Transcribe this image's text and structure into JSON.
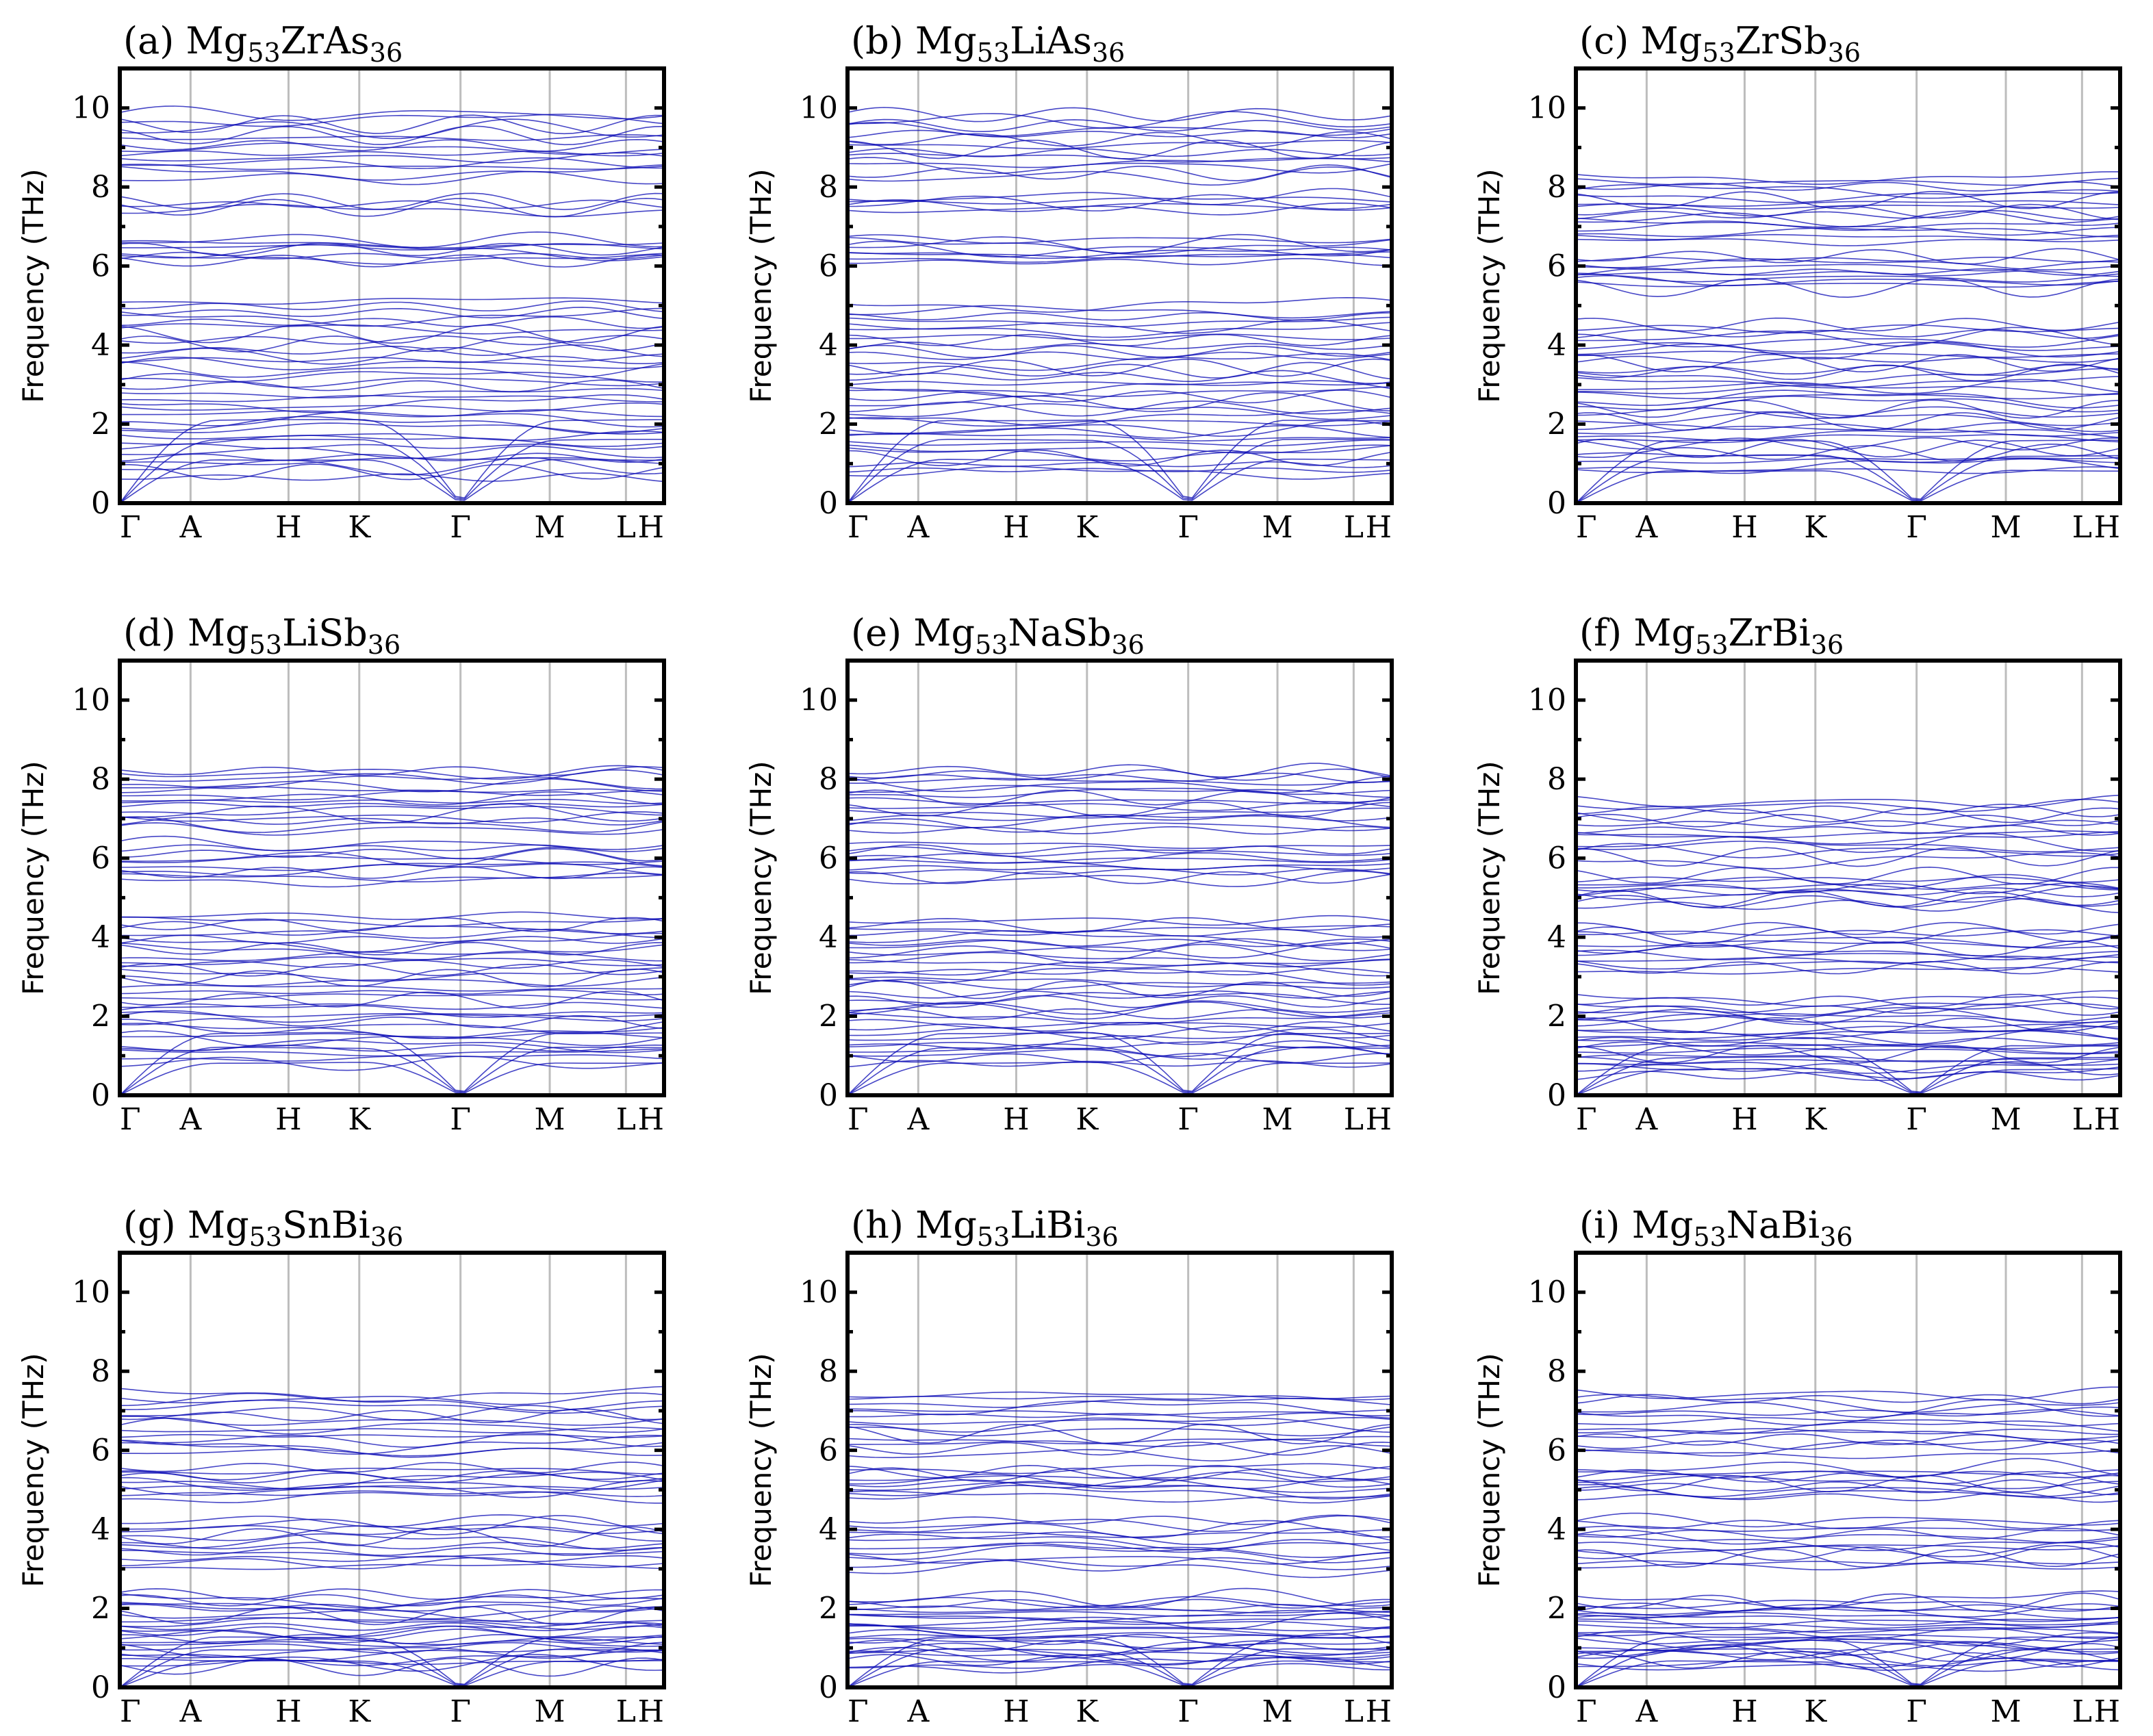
{
  "chart_data": [
    {
      "type": "line",
      "id": "a",
      "label": "(a)",
      "formula": [
        [
          "Mg",
          ""
        ],
        [
          "53",
          "sub"
        ],
        [
          "ZrAs",
          ""
        ],
        [
          "36",
          "sub"
        ]
      ],
      "ylabel": "Frequency (THz)",
      "ylim": [
        0,
        11
      ],
      "yticks": [
        0,
        2,
        4,
        6,
        8,
        10
      ],
      "kpath": [
        "Γ",
        "A",
        "H",
        "K",
        "Γ",
        "M",
        "L",
        "H"
      ],
      "band_groups": [
        {
          "lo": 0.6,
          "hi": 5.2,
          "n": 34
        },
        {
          "lo": 6.1,
          "hi": 6.7,
          "n": 8
        },
        {
          "lo": 7.4,
          "hi": 7.7,
          "n": 4
        },
        {
          "lo": 8.2,
          "hi": 9.9,
          "n": 14
        }
      ],
      "acoustic_max": 2.0,
      "line_color": "#0a0ab4"
    },
    {
      "type": "line",
      "id": "b",
      "label": "(b)",
      "formula": [
        [
          "Mg",
          ""
        ],
        [
          "53",
          "sub"
        ],
        [
          "LiAs",
          ""
        ],
        [
          "36",
          "sub"
        ]
      ],
      "ylabel": "Frequency (THz)",
      "ylim": [
        0,
        11
      ],
      "yticks": [
        0,
        2,
        4,
        6,
        8,
        10
      ],
      "kpath": [
        "Γ",
        "A",
        "H",
        "K",
        "Γ",
        "M",
        "L",
        "H"
      ],
      "band_groups": [
        {
          "lo": 0.7,
          "hi": 5.1,
          "n": 34
        },
        {
          "lo": 6.1,
          "hi": 6.7,
          "n": 8
        },
        {
          "lo": 7.4,
          "hi": 7.8,
          "n": 5
        },
        {
          "lo": 8.2,
          "hi": 9.9,
          "n": 14
        }
      ],
      "acoustic_max": 2.0,
      "line_color": "#0a0ab4"
    },
    {
      "type": "line",
      "id": "c",
      "label": "(c)",
      "formula": [
        [
          "Mg",
          ""
        ],
        [
          "53",
          "sub"
        ],
        [
          "ZrSb",
          ""
        ],
        [
          "36",
          "sub"
        ]
      ],
      "ylabel": "Frequency (THz)",
      "ylim": [
        0,
        11
      ],
      "yticks": [
        0,
        2,
        4,
        6,
        8,
        10
      ],
      "kpath": [
        "Γ",
        "A",
        "H",
        "K",
        "Γ",
        "M",
        "L",
        "H"
      ],
      "band_groups": [
        {
          "lo": 0.8,
          "hi": 4.6,
          "n": 34
        },
        {
          "lo": 5.4,
          "hi": 6.3,
          "n": 10
        },
        {
          "lo": 6.6,
          "hi": 8.3,
          "n": 16
        }
      ],
      "acoustic_max": 1.5,
      "line_color": "#0a0ab4"
    },
    {
      "type": "line",
      "id": "d",
      "label": "(d)",
      "formula": [
        [
          "Mg",
          ""
        ],
        [
          "53",
          "sub"
        ],
        [
          "LiSb",
          ""
        ],
        [
          "36",
          "sub"
        ]
      ],
      "ylabel": "Frequency (THz)",
      "ylim": [
        0,
        11
      ],
      "yticks": [
        0,
        2,
        4,
        6,
        8,
        10
      ],
      "kpath": [
        "Γ",
        "A",
        "H",
        "K",
        "Γ",
        "M",
        "L",
        "H"
      ],
      "band_groups": [
        {
          "lo": 0.8,
          "hi": 4.6,
          "n": 34
        },
        {
          "lo": 5.4,
          "hi": 6.4,
          "n": 10
        },
        {
          "lo": 6.7,
          "hi": 8.3,
          "n": 16
        }
      ],
      "acoustic_max": 1.5,
      "line_color": "#0a0ab4"
    },
    {
      "type": "line",
      "id": "e",
      "label": "(e)",
      "formula": [
        [
          "Mg",
          ""
        ],
        [
          "53",
          "sub"
        ],
        [
          "NaSb",
          ""
        ],
        [
          "36",
          "sub"
        ]
      ],
      "ylabel": "Frequency (THz)",
      "ylim": [
        0,
        11
      ],
      "yticks": [
        0,
        2,
        4,
        6,
        8,
        10
      ],
      "kpath": [
        "Γ",
        "A",
        "H",
        "K",
        "Γ",
        "M",
        "L",
        "H"
      ],
      "band_groups": [
        {
          "lo": 0.8,
          "hi": 4.5,
          "n": 34
        },
        {
          "lo": 5.4,
          "hi": 6.4,
          "n": 10
        },
        {
          "lo": 6.7,
          "hi": 8.3,
          "n": 16
        }
      ],
      "acoustic_max": 1.5,
      "line_color": "#0a0ab4"
    },
    {
      "type": "line",
      "id": "f",
      "label": "(f)",
      "formula": [
        [
          "Mg",
          ""
        ],
        [
          "53",
          "sub"
        ],
        [
          "ZrBi",
          ""
        ],
        [
          "36",
          "sub"
        ]
      ],
      "ylabel": "Frequency (THz)",
      "ylim": [
        0,
        11
      ],
      "yticks": [
        0,
        2,
        4,
        6,
        8,
        10
      ],
      "kpath": [
        "Γ",
        "A",
        "H",
        "K",
        "Γ",
        "M",
        "L",
        "H"
      ],
      "band_groups": [
        {
          "lo": 0.5,
          "hi": 2.5,
          "n": 24
        },
        {
          "lo": 3.1,
          "hi": 4.3,
          "n": 12
        },
        {
          "lo": 4.8,
          "hi": 5.6,
          "n": 10
        },
        {
          "lo": 5.9,
          "hi": 7.5,
          "n": 14
        }
      ],
      "acoustic_max": 1.2,
      "line_color": "#0a0ab4"
    },
    {
      "type": "line",
      "id": "g",
      "label": "(g)",
      "formula": [
        [
          "Mg",
          ""
        ],
        [
          "53",
          "sub"
        ],
        [
          "SnBi",
          ""
        ],
        [
          "36",
          "sub"
        ]
      ],
      "ylabel": "Frequency (THz)",
      "ylim": [
        0,
        11
      ],
      "yticks": [
        0,
        2,
        4,
        6,
        8,
        10
      ],
      "kpath": [
        "Γ",
        "A",
        "H",
        "K",
        "Γ",
        "M",
        "L",
        "H"
      ],
      "band_groups": [
        {
          "lo": 0.5,
          "hi": 2.4,
          "n": 24
        },
        {
          "lo": 3.0,
          "hi": 4.3,
          "n": 12
        },
        {
          "lo": 4.8,
          "hi": 5.6,
          "n": 10
        },
        {
          "lo": 5.9,
          "hi": 7.5,
          "n": 14
        }
      ],
      "acoustic_max": 1.2,
      "line_color": "#0a0ab4"
    },
    {
      "type": "line",
      "id": "h",
      "label": "(h)",
      "formula": [
        [
          "Mg",
          ""
        ],
        [
          "53",
          "sub"
        ],
        [
          "LiBi",
          ""
        ],
        [
          "36",
          "sub"
        ]
      ],
      "ylabel": "Frequency (THz)",
      "ylim": [
        0,
        11
      ],
      "yticks": [
        0,
        2,
        4,
        6,
        8,
        10
      ],
      "kpath": [
        "Γ",
        "A",
        "H",
        "K",
        "Γ",
        "M",
        "L",
        "H"
      ],
      "band_groups": [
        {
          "lo": 0.5,
          "hi": 2.3,
          "n": 24
        },
        {
          "lo": 3.0,
          "hi": 4.3,
          "n": 12
        },
        {
          "lo": 4.8,
          "hi": 5.6,
          "n": 10
        },
        {
          "lo": 5.9,
          "hi": 7.5,
          "n": 14
        }
      ],
      "acoustic_max": 1.2,
      "line_color": "#0a0ab4"
    },
    {
      "type": "line",
      "id": "i",
      "label": "(i)",
      "formula": [
        [
          "Mg",
          ""
        ],
        [
          "53",
          "sub"
        ],
        [
          "NaBi",
          ""
        ],
        [
          "36",
          "sub"
        ]
      ],
      "ylabel": "Frequency (THz)",
      "ylim": [
        0,
        11
      ],
      "yticks": [
        0,
        2,
        4,
        6,
        8,
        10
      ],
      "kpath": [
        "Γ",
        "A",
        "H",
        "K",
        "Γ",
        "M",
        "L",
        "H"
      ],
      "band_groups": [
        {
          "lo": 0.5,
          "hi": 2.3,
          "n": 24
        },
        {
          "lo": 3.0,
          "hi": 4.3,
          "n": 12
        },
        {
          "lo": 4.8,
          "hi": 5.6,
          "n": 10
        },
        {
          "lo": 5.9,
          "hi": 7.5,
          "n": 14
        }
      ],
      "acoustic_max": 1.2,
      "line_color": "#0a0ab4"
    }
  ]
}
